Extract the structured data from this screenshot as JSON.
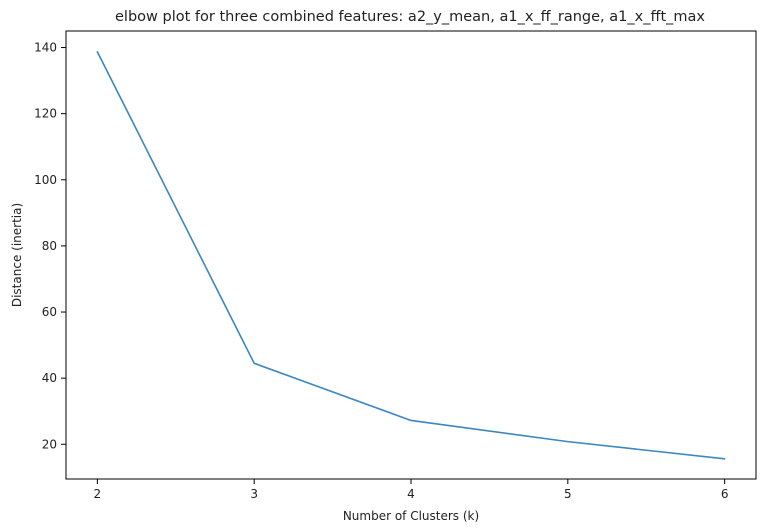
{
  "chart_data": {
    "type": "line",
    "title": "elbow plot for three combined features: a2_y_mean, a1_x_ff_range, a1_x_fft_max",
    "xlabel": "Number of Clusters (k)",
    "ylabel": "Distance (inertia)",
    "x": [
      2,
      3,
      4,
      5,
      6
    ],
    "series": [
      {
        "values": [
          138.7,
          44.5,
          27.2,
          20.8,
          15.6
        ],
        "color": "#3a87c3"
      }
    ],
    "xlim": [
      1.8,
      6.2
    ],
    "ylim": [
      9.5,
      145
    ],
    "xticks": [
      2,
      3,
      4,
      5,
      6
    ],
    "yticks": [
      20,
      40,
      60,
      80,
      100,
      120,
      140
    ],
    "grid": false,
    "legend": "none"
  }
}
